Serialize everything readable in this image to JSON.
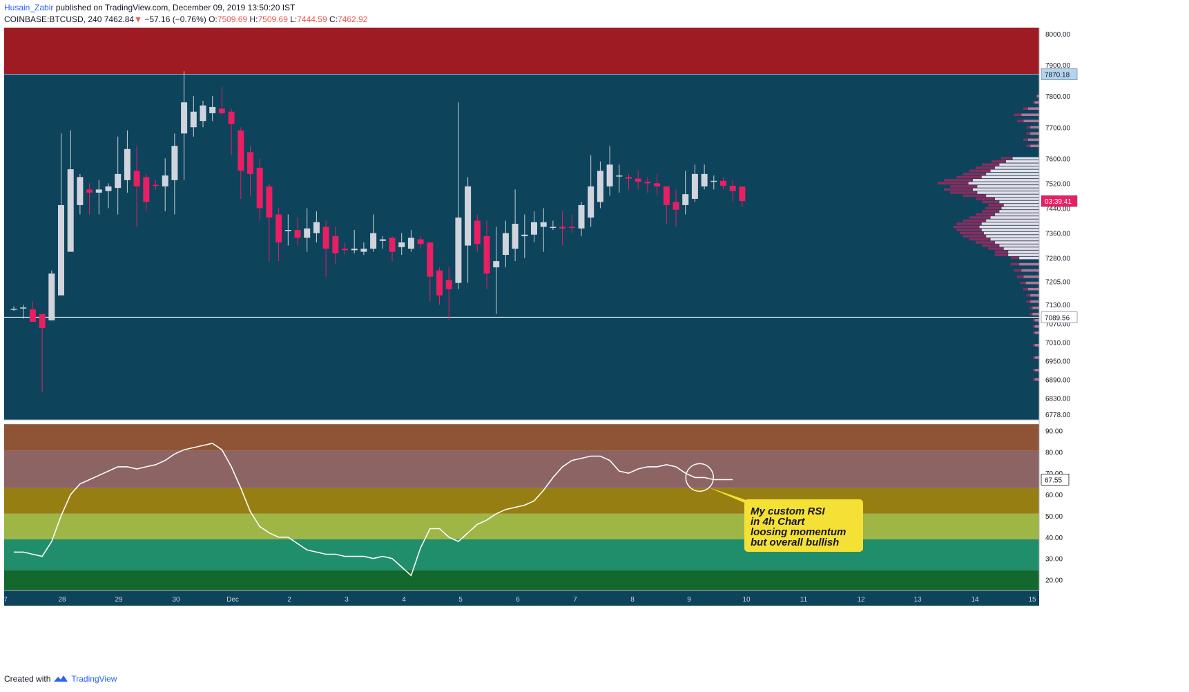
{
  "header": {
    "author": "Husain_Zabir",
    "published": "published on TradingView.com, December 09, 2019 13:50:20 IST",
    "symbol": "COINBASE:BTCUSD, 240",
    "last": "7462.84",
    "change_arrow": "▼",
    "change": "−57.16 (−0.76%)",
    "o_label": "O:",
    "o": "7509.69",
    "h_label": "H:",
    "h": "7509.69",
    "l_label": "L:",
    "l": "7444.59",
    "c_label": "C:",
    "c": "7462.92"
  },
  "footer": {
    "created_with": "Created with",
    "brand": "TradingView",
    "brand_icon": "tradingview-logo-icon"
  },
  "annotation": "My custom RSI in 4h Chart loosing momentum but overall bullish",
  "colors": {
    "price_bg": "#0d435b",
    "top_band": "#9e1b24",
    "bull": "#d1d4dc",
    "bear": "#e91e63",
    "rsi_bands": [
      "#8f5436",
      "#8d6464",
      "#977e13",
      "#9db645",
      "#218e6b",
      "#12682d"
    ],
    "rsi_line": "#ffffff",
    "callout": "#f5e035"
  },
  "chart_data": [
    {
      "type": "candlestick",
      "title": "COINBASE:BTCUSD, 240",
      "ylim": [
        6760,
        8020
      ],
      "y_ticks": [
        "8000.00",
        "7900.00",
        "7800.00",
        "7700.00",
        "7600.00",
        "7520.00",
        "7440.00",
        "7360.00",
        "7280.00",
        "7205.00",
        "7130.00",
        "7070.00",
        "7010.00",
        "6950.00",
        "6890.00",
        "6830.00",
        "6778.00"
      ],
      "x_ticks": [
        "7",
        "28",
        "29",
        "30",
        "Dec",
        "2",
        "3",
        "4",
        "5",
        "6",
        "7",
        "8",
        "9",
        "10",
        "11",
        "12",
        "13",
        "14",
        "15"
      ],
      "horizontal_lines": [
        7870.18,
        7089.56
      ],
      "price_labels": {
        "top_line": "7870.18",
        "bottom_line": "7089.56",
        "countdown": "03:39:41"
      },
      "resistance_zone": [
        7870,
        8020
      ],
      "candles": [
        {
          "o": 7117,
          "h": 7125,
          "l": 7110,
          "c": 7117
        },
        {
          "o": 7118,
          "h": 7130,
          "l": 7085,
          "c": 7121
        },
        {
          "o": 7115,
          "h": 7140,
          "l": 7075,
          "c": 7075
        },
        {
          "o": 7100,
          "h": 7100,
          "l": 6850,
          "c": 7055
        },
        {
          "o": 7080,
          "h": 7240,
          "l": 7080,
          "c": 7230
        },
        {
          "o": 7160,
          "h": 7680,
          "l": 7160,
          "c": 7450
        },
        {
          "o": 7300,
          "h": 7690,
          "l": 7300,
          "c": 7565
        },
        {
          "o": 7450,
          "h": 7550,
          "l": 7420,
          "c": 7540
        },
        {
          "o": 7500,
          "h": 7520,
          "l": 7420,
          "c": 7490
        },
        {
          "o": 7490,
          "h": 7530,
          "l": 7420,
          "c": 7500
        },
        {
          "o": 7495,
          "h": 7520,
          "l": 7440,
          "c": 7510
        },
        {
          "o": 7505,
          "h": 7670,
          "l": 7420,
          "c": 7550
        },
        {
          "o": 7530,
          "h": 7690,
          "l": 7490,
          "c": 7630
        },
        {
          "o": 7560,
          "h": 7640,
          "l": 7380,
          "c": 7510
        },
        {
          "o": 7540,
          "h": 7550,
          "l": 7430,
          "c": 7460
        },
        {
          "o": 7515,
          "h": 7530,
          "l": 7500,
          "c": 7513
        },
        {
          "o": 7510,
          "h": 7600,
          "l": 7430,
          "c": 7545
        },
        {
          "o": 7530,
          "h": 7680,
          "l": 7420,
          "c": 7640
        },
        {
          "o": 7680,
          "h": 7880,
          "l": 7530,
          "c": 7780
        },
        {
          "o": 7700,
          "h": 7800,
          "l": 7670,
          "c": 7750
        },
        {
          "o": 7720,
          "h": 7785,
          "l": 7700,
          "c": 7770
        },
        {
          "o": 7745,
          "h": 7800,
          "l": 7720,
          "c": 7765
        },
        {
          "o": 7760,
          "h": 7830,
          "l": 7740,
          "c": 7745
        },
        {
          "o": 7750,
          "h": 7760,
          "l": 7610,
          "c": 7710
        },
        {
          "o": 7690,
          "h": 7700,
          "l": 7470,
          "c": 7560
        },
        {
          "o": 7620,
          "h": 7640,
          "l": 7480,
          "c": 7550
        },
        {
          "o": 7570,
          "h": 7600,
          "l": 7400,
          "c": 7440
        },
        {
          "o": 7510,
          "h": 7520,
          "l": 7270,
          "c": 7410
        },
        {
          "o": 7420,
          "h": 7440,
          "l": 7270,
          "c": 7330
        },
        {
          "o": 7370,
          "h": 7420,
          "l": 7320,
          "c": 7370
        },
        {
          "o": 7370,
          "h": 7410,
          "l": 7320,
          "c": 7345
        },
        {
          "o": 7345,
          "h": 7440,
          "l": 7300,
          "c": 7375
        },
        {
          "o": 7360,
          "h": 7430,
          "l": 7330,
          "c": 7395
        },
        {
          "o": 7380,
          "h": 7400,
          "l": 7220,
          "c": 7310
        },
        {
          "o": 7350,
          "h": 7380,
          "l": 7260,
          "c": 7295
        },
        {
          "o": 7310,
          "h": 7330,
          "l": 7290,
          "c": 7305
        },
        {
          "o": 7305,
          "h": 7370,
          "l": 7295,
          "c": 7310
        },
        {
          "o": 7300,
          "h": 7330,
          "l": 7290,
          "c": 7310
        },
        {
          "o": 7310,
          "h": 7420,
          "l": 7300,
          "c": 7360
        },
        {
          "o": 7335,
          "h": 7350,
          "l": 7310,
          "c": 7340
        },
        {
          "o": 7345,
          "h": 7350,
          "l": 7270,
          "c": 7300
        },
        {
          "o": 7315,
          "h": 7360,
          "l": 7290,
          "c": 7330
        },
        {
          "o": 7310,
          "h": 7370,
          "l": 7300,
          "c": 7345
        },
        {
          "o": 7340,
          "h": 7350,
          "l": 7310,
          "c": 7325
        },
        {
          "o": 7330,
          "h": 7330,
          "l": 7140,
          "c": 7220
        },
        {
          "o": 7240,
          "h": 7250,
          "l": 7130,
          "c": 7160
        },
        {
          "o": 7210,
          "h": 7250,
          "l": 7080,
          "c": 7180
        },
        {
          "o": 7200,
          "h": 7780,
          "l": 7180,
          "c": 7410
        },
        {
          "o": 7320,
          "h": 7540,
          "l": 7200,
          "c": 7510
        },
        {
          "o": 7400,
          "h": 7420,
          "l": 7300,
          "c": 7325
        },
        {
          "o": 7350,
          "h": 7400,
          "l": 7180,
          "c": 7230
        },
        {
          "o": 7250,
          "h": 7380,
          "l": 7100,
          "c": 7270
        },
        {
          "o": 7290,
          "h": 7400,
          "l": 7250,
          "c": 7360
        },
        {
          "o": 7310,
          "h": 7500,
          "l": 7270,
          "c": 7390
        },
        {
          "o": 7350,
          "h": 7420,
          "l": 7280,
          "c": 7355
        },
        {
          "o": 7355,
          "h": 7430,
          "l": 7330,
          "c": 7395
        },
        {
          "o": 7380,
          "h": 7440,
          "l": 7300,
          "c": 7395
        },
        {
          "o": 7380,
          "h": 7400,
          "l": 7370,
          "c": 7380
        },
        {
          "o": 7380,
          "h": 7430,
          "l": 7320,
          "c": 7375
        },
        {
          "o": 7380,
          "h": 7420,
          "l": 7360,
          "c": 7377
        },
        {
          "o": 7375,
          "h": 7460,
          "l": 7350,
          "c": 7450
        },
        {
          "o": 7410,
          "h": 7610,
          "l": 7380,
          "c": 7510
        },
        {
          "o": 7460,
          "h": 7590,
          "l": 7440,
          "c": 7560
        },
        {
          "o": 7510,
          "h": 7640,
          "l": 7480,
          "c": 7580
        },
        {
          "o": 7545,
          "h": 7580,
          "l": 7490,
          "c": 7545
        },
        {
          "o": 7540,
          "h": 7550,
          "l": 7500,
          "c": 7535
        },
        {
          "o": 7535,
          "h": 7560,
          "l": 7500,
          "c": 7525
        },
        {
          "o": 7525,
          "h": 7540,
          "l": 7490,
          "c": 7520
        },
        {
          "o": 7520,
          "h": 7550,
          "l": 7480,
          "c": 7510
        },
        {
          "o": 7510,
          "h": 7510,
          "l": 7390,
          "c": 7450
        },
        {
          "o": 7460,
          "h": 7500,
          "l": 7380,
          "c": 7435
        },
        {
          "o": 7450,
          "h": 7560,
          "l": 7420,
          "c": 7485
        },
        {
          "o": 7470,
          "h": 7580,
          "l": 7460,
          "c": 7550
        },
        {
          "o": 7510,
          "h": 7580,
          "l": 7500,
          "c": 7550
        },
        {
          "o": 7525,
          "h": 7545,
          "l": 7500,
          "c": 7528
        },
        {
          "o": 7528,
          "h": 7540,
          "l": 7500,
          "c": 7512
        },
        {
          "o": 7512,
          "h": 7530,
          "l": 7460,
          "c": 7495
        },
        {
          "o": 7509.69,
          "h": 7509.69,
          "l": 7444.59,
          "c": 7462.92
        }
      ]
    },
    {
      "type": "line",
      "title": "My custom RSI",
      "ylim": [
        15,
        95
      ],
      "y_ticks": [
        "90.00",
        "80.00",
        "70.00",
        "60.00",
        "50.00",
        "40.00",
        "30.00",
        "20.00"
      ],
      "last_value_label": "67.55",
      "bands": [
        [
          80.5,
          93
        ],
        [
          63,
          80.5
        ],
        [
          51,
          63
        ],
        [
          39,
          51
        ],
        [
          24.5,
          39
        ],
        [
          15,
          24.5
        ]
      ],
      "values": [
        33,
        33,
        32,
        31,
        38,
        50,
        60,
        65,
        67,
        69,
        71,
        73,
        73,
        72,
        73,
        74,
        76,
        79,
        81,
        82,
        83,
        84,
        81,
        73,
        63,
        52,
        45,
        42,
        40,
        40,
        37,
        34,
        33,
        32,
        32,
        31,
        31,
        31,
        30,
        31,
        30,
        26,
        22,
        35,
        44,
        44,
        40,
        38,
        42,
        46,
        48,
        51,
        53,
        54,
        55,
        57,
        62,
        68,
        73,
        76,
        77,
        78,
        78,
        76,
        71,
        70,
        72,
        73,
        73,
        74,
        73,
        70,
        68,
        68,
        67,
        67,
        67
      ]
    }
  ]
}
